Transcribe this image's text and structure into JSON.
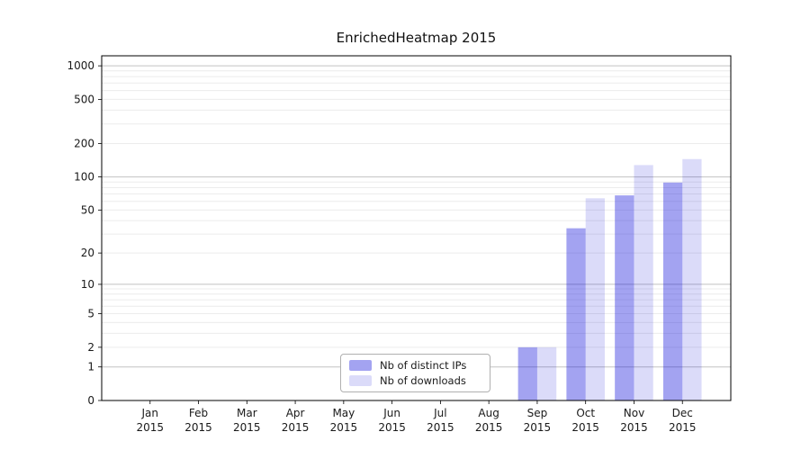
{
  "title": "EnrichedHeatmap 2015",
  "chart_data": {
    "type": "bar",
    "title": "EnrichedHeatmap 2015",
    "categories": [
      "Jan",
      "Feb",
      "Mar",
      "Apr",
      "May",
      "Jun",
      "Jul",
      "Aug",
      "Sep",
      "Oct",
      "Nov",
      "Dec"
    ],
    "year": "2015",
    "series": [
      {
        "name": "Nb of distinct IPs",
        "fill": "rgba(0,0,215,0.36)",
        "values": [
          0,
          0,
          0,
          0,
          0,
          0,
          0,
          0,
          2,
          34,
          68,
          89
        ]
      },
      {
        "name": "Nb of downloads",
        "fill": "rgba(0,0,215,0.14)",
        "values": [
          0,
          0,
          0,
          0,
          0,
          0,
          0,
          0,
          2,
          64,
          128,
          145
        ]
      }
    ],
    "y_ticks": [
      0,
      1,
      2,
      5,
      10,
      20,
      50,
      100,
      200,
      500,
      1000
    ],
    "y_major_gridlines": [
      1,
      10,
      100,
      1000
    ],
    "y_scale": "log1p",
    "ylim": [
      0,
      1230
    ],
    "grid": true,
    "legend_position": "lower center",
    "colors": {
      "bar_distinct_ips": "rgba(0,0,215,0.36)",
      "bar_downloads": "rgba(0,0,215,0.14)",
      "grid_major": "#c2c2c2",
      "grid_minor": "#ececec",
      "spine": "#000000",
      "text": "#1a1a1a"
    }
  }
}
